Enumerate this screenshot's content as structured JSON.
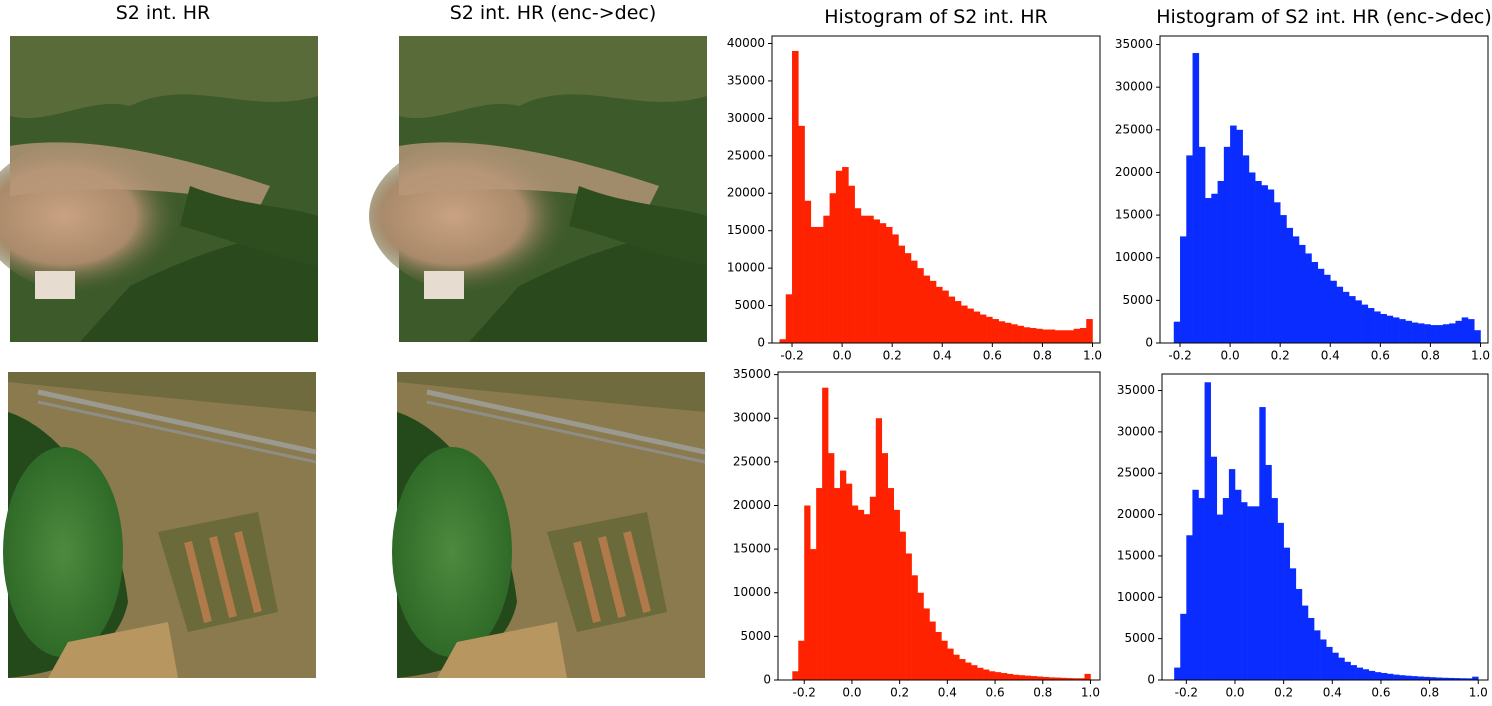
{
  "panels": [
    {
      "title": "S2 int. HR"
    },
    {
      "title": "S2 int. HR (enc->dec)"
    }
  ],
  "chart_data": [
    {
      "type": "histogram",
      "title": "Histogram of S2 int. HR",
      "color": "#ff2200",
      "bins": [
        -0.25,
        -0.225,
        -0.2,
        -0.175,
        -0.15,
        -0.125,
        -0.1,
        -0.075,
        -0.05,
        -0.025,
        0,
        0.025,
        0.05,
        0.075,
        0.1,
        0.125,
        0.15,
        0.175,
        0.2,
        0.225,
        0.25,
        0.275,
        0.3,
        0.325,
        0.35,
        0.375,
        0.4,
        0.425,
        0.45,
        0.475,
        0.5,
        0.525,
        0.55,
        0.575,
        0.6,
        0.625,
        0.65,
        0.675,
        0.7,
        0.725,
        0.75,
        0.775,
        0.8,
        0.825,
        0.85,
        0.875,
        0.9,
        0.925,
        0.95,
        0.975,
        1.0
      ],
      "values": [
        500,
        6500,
        39000,
        29000,
        19000,
        15500,
        15500,
        17000,
        20000,
        23000,
        23500,
        21000,
        18000,
        17000,
        17000,
        16500,
        16000,
        15500,
        14500,
        13000,
        12000,
        11000,
        10000,
        9000,
        8300,
        7500,
        7000,
        6200,
        5600,
        5000,
        4600,
        4200,
        3800,
        3500,
        3200,
        2900,
        2700,
        2500,
        2300,
        2100,
        2000,
        1900,
        1800,
        1800,
        1700,
        1700,
        1700,
        1900,
        2000,
        3200
      ],
      "xlim": [
        -0.28,
        1.03
      ],
      "ylim": [
        0,
        41000
      ],
      "xticks": [
        -0.2,
        {
          "value": 0,
          "label": "0.0"
        },
        0.2,
        0.4,
        0.6,
        0.8,
        {
          "value": 1,
          "label": "1.0"
        }
      ],
      "yticks": [
        0,
        5000,
        10000,
        15000,
        20000,
        25000,
        30000,
        35000,
        40000
      ]
    },
    {
      "type": "histogram",
      "title": "Histogram of S2 int. HR (enc->dec)",
      "color": "#0a2cff",
      "bins": [
        -0.25,
        -0.225,
        -0.2,
        -0.175,
        -0.15,
        -0.125,
        -0.1,
        -0.075,
        -0.05,
        -0.025,
        0,
        0.025,
        0.05,
        0.075,
        0.1,
        0.125,
        0.15,
        0.175,
        0.2,
        0.225,
        0.25,
        0.275,
        0.3,
        0.325,
        0.35,
        0.375,
        0.4,
        0.425,
        0.45,
        0.475,
        0.5,
        0.525,
        0.55,
        0.575,
        0.6,
        0.625,
        0.65,
        0.675,
        0.7,
        0.725,
        0.75,
        0.775,
        0.8,
        0.825,
        0.85,
        0.875,
        0.9,
        0.925,
        0.95,
        0.975,
        1.0
      ],
      "values": [
        0,
        2500,
        12500,
        22000,
        34000,
        23000,
        17000,
        17500,
        19000,
        23000,
        25500,
        25000,
        22000,
        20000,
        19000,
        18500,
        18000,
        16500,
        15000,
        13500,
        12500,
        11500,
        10500,
        9500,
        8700,
        8000,
        7300,
        6600,
        6000,
        5500,
        5000,
        4500,
        4100,
        3700,
        3400,
        3200,
        3000,
        2800,
        2600,
        2400,
        2300,
        2200,
        2100,
        2100,
        2200,
        2300,
        2600,
        3000,
        2800,
        1500
      ],
      "xlim": [
        -0.28,
        1.03
      ],
      "ylim": [
        0,
        36000
      ],
      "xticks": [
        -0.2,
        {
          "value": 0,
          "label": "0.0"
        },
        0.2,
        0.4,
        0.6,
        0.8,
        {
          "value": 1,
          "label": "1.0"
        }
      ],
      "yticks": [
        0,
        5000,
        10000,
        15000,
        20000,
        25000,
        30000,
        35000
      ]
    },
    {
      "type": "histogram",
      "color": "#ff2200",
      "bins": [
        -0.25,
        -0.225,
        -0.2,
        -0.175,
        -0.15,
        -0.125,
        -0.1,
        -0.075,
        -0.05,
        -0.025,
        0,
        0.025,
        0.05,
        0.075,
        0.1,
        0.125,
        0.15,
        0.175,
        0.2,
        0.225,
        0.25,
        0.275,
        0.3,
        0.325,
        0.35,
        0.375,
        0.4,
        0.425,
        0.45,
        0.475,
        0.5,
        0.525,
        0.55,
        0.575,
        0.6,
        0.625,
        0.65,
        0.675,
        0.7,
        0.725,
        0.75,
        0.775,
        0.8,
        0.825,
        0.85,
        0.875,
        0.9,
        0.925,
        0.95,
        0.975,
        1.0
      ],
      "values": [
        1000,
        4500,
        20000,
        15000,
        22000,
        33500,
        26000,
        22000,
        24000,
        22500,
        20000,
        19500,
        19000,
        21000,
        30000,
        26000,
        22000,
        19500,
        17000,
        14500,
        12000,
        10000,
        8200,
        6700,
        5500,
        4500,
        3600,
        2900,
        2400,
        2000,
        1700,
        1400,
        1200,
        1000,
        900,
        800,
        700,
        600,
        550,
        500,
        450,
        400,
        350,
        300,
        280,
        250,
        220,
        200,
        200,
        700
      ],
      "xlim": [
        -0.31,
        1.04
      ],
      "ylim": [
        0,
        35300
      ],
      "xticks": [
        -0.2,
        {
          "value": 0,
          "label": "0.0"
        },
        0.2,
        0.4,
        0.6,
        0.8,
        {
          "value": 1,
          "label": "1.0"
        }
      ],
      "yticks": [
        0,
        5000,
        10000,
        15000,
        20000,
        25000,
        30000,
        35000
      ]
    },
    {
      "type": "histogram",
      "color": "#0a2cff",
      "bins": [
        -0.25,
        -0.225,
        -0.2,
        -0.175,
        -0.15,
        -0.125,
        -0.1,
        -0.075,
        -0.05,
        -0.025,
        0,
        0.025,
        0.05,
        0.075,
        0.1,
        0.125,
        0.15,
        0.175,
        0.2,
        0.225,
        0.25,
        0.275,
        0.3,
        0.325,
        0.35,
        0.375,
        0.4,
        0.425,
        0.45,
        0.475,
        0.5,
        0.525,
        0.55,
        0.575,
        0.6,
        0.625,
        0.65,
        0.675,
        0.7,
        0.725,
        0.75,
        0.775,
        0.8,
        0.825,
        0.85,
        0.875,
        0.9,
        0.925,
        0.95,
        0.975,
        1.0
      ],
      "values": [
        1500,
        8000,
        17500,
        23000,
        22000,
        36000,
        27000,
        20000,
        22000,
        25500,
        23000,
        21500,
        21000,
        21000,
        33000,
        26000,
        22000,
        19000,
        16000,
        13500,
        11000,
        9000,
        7500,
        6000,
        4900,
        4000,
        3300,
        2700,
        2200,
        1800,
        1500,
        1300,
        1100,
        950,
        850,
        750,
        650,
        580,
        520,
        470,
        420,
        380,
        340,
        300,
        270,
        250,
        230,
        210,
        200,
        400
      ],
      "xlim": [
        -0.3,
        1.04
      ],
      "ylim": [
        0,
        37000
      ],
      "xticks": [
        -0.2,
        {
          "value": 0,
          "label": "0.0"
        },
        0.2,
        0.4,
        0.6,
        0.8,
        {
          "value": 1,
          "label": "1.0"
        }
      ],
      "yticks": [
        0,
        5000,
        10000,
        15000,
        20000,
        25000,
        30000,
        35000
      ]
    }
  ]
}
